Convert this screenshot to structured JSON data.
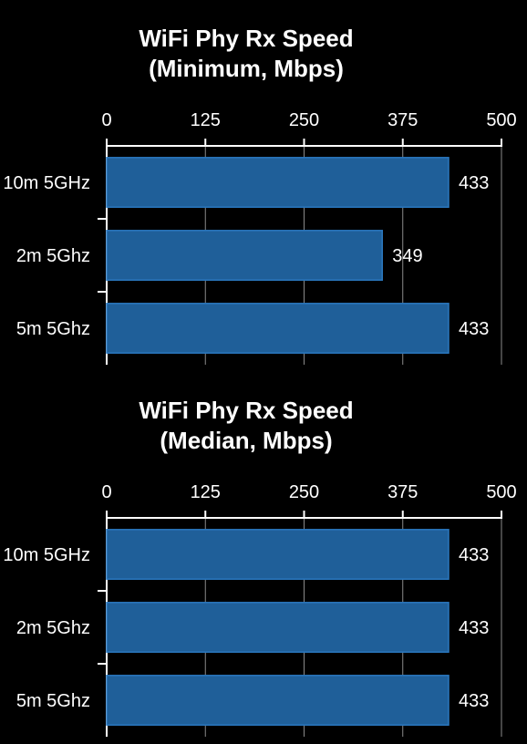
{
  "chart_data": [
    {
      "type": "bar",
      "orientation": "horizontal",
      "title": [
        "WiFi Phy Rx Speed",
        "(Minimum, Mbps)"
      ],
      "categories": [
        "10m 5GHz",
        "2m 5Ghz",
        "5m 5Ghz"
      ],
      "values": [
        433,
        349,
        433
      ],
      "data_labels": [
        "433",
        "349",
        "433"
      ],
      "xlim": [
        0,
        500
      ],
      "xticks": [
        0,
        125,
        250,
        375,
        500
      ],
      "tick_labels": [
        "0",
        "125",
        "250",
        "375",
        "500"
      ],
      "xaxis_position": "top",
      "grid": true,
      "bar_color": "#1f5f99",
      "bar_edge_color": "#2b78bf"
    },
    {
      "type": "bar",
      "orientation": "horizontal",
      "title": [
        "WiFi Phy Rx Speed",
        "(Median, Mbps)"
      ],
      "categories": [
        "10m 5GHz",
        "2m 5Ghz",
        "5m 5Ghz"
      ],
      "values": [
        433,
        433,
        433
      ],
      "data_labels": [
        "433",
        "433",
        "433"
      ],
      "xlim": [
        0,
        500
      ],
      "xticks": [
        0,
        125,
        250,
        375,
        500
      ],
      "tick_labels": [
        "0",
        "125",
        "250",
        "375",
        "500"
      ],
      "xaxis_position": "top",
      "grid": true,
      "bar_color": "#1f5f99",
      "bar_edge_color": "#2b78bf"
    }
  ]
}
